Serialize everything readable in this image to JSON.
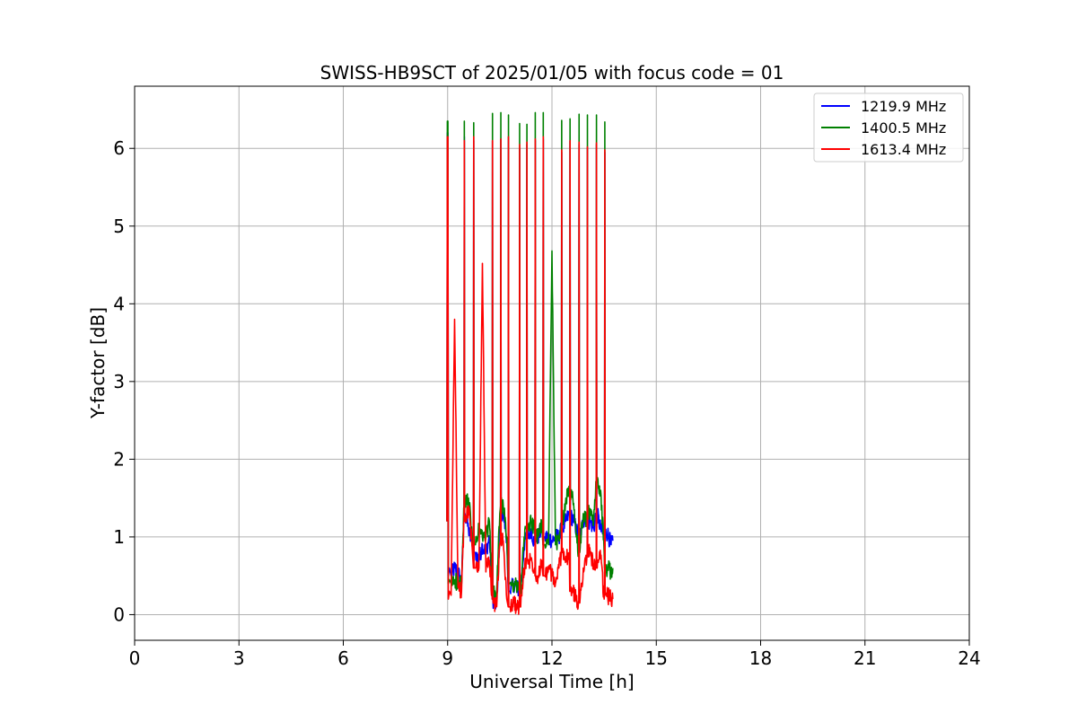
{
  "chart_data": {
    "type": "line",
    "title": "SWISS-HB9SCT of 2025/01/05 with focus code = 01",
    "xlabel": "Universal Time [h]",
    "ylabel": "Y-factor [dB]",
    "xlim": [
      0,
      24
    ],
    "ylim": [
      -0.33,
      6.8
    ],
    "xticks": [
      0,
      3,
      6,
      9,
      12,
      15,
      18,
      21,
      24
    ],
    "xtick_labels": [
      "0",
      "3",
      "6",
      "9",
      "12",
      "15",
      "18",
      "21",
      "24"
    ],
    "yticks": [
      0,
      1,
      2,
      3,
      4,
      5,
      6
    ],
    "ytick_labels": [
      "0",
      "1",
      "2",
      "3",
      "4",
      "5",
      "6"
    ],
    "grid": true,
    "legend_position": "top-right",
    "series": [
      {
        "name": "1219.9 MHz",
        "color": "#0000ff",
        "x": [
          8.98,
          9.0,
          9.02,
          9.05,
          9.1,
          9.2,
          9.3,
          9.4,
          9.5,
          9.6,
          9.7,
          9.8,
          9.9,
          10.0,
          10.1,
          10.2,
          10.3,
          10.4,
          10.5,
          10.6,
          10.7,
          10.8,
          10.9,
          11.0,
          11.1,
          11.2,
          11.3,
          11.4,
          11.5,
          11.6,
          11.7,
          11.8,
          11.9,
          12.0,
          12.1,
          12.2,
          12.3,
          12.4,
          12.5,
          12.6,
          12.7,
          12.8,
          12.9,
          13.0,
          13.1,
          13.2,
          13.3,
          13.4,
          13.5,
          13.6,
          13.7,
          13.75
        ],
        "y": [
          1.2,
          6.2,
          0.5,
          0.6,
          0.5,
          0.6,
          0.55,
          0.4,
          1.3,
          1.1,
          0.9,
          0.8,
          0.7,
          0.9,
          0.8,
          1.0,
          0.2,
          0.1,
          0.9,
          1.3,
          1.0,
          0.3,
          0.4,
          0.35,
          0.3,
          0.9,
          1.0,
          1.1,
          0.9,
          1.0,
          1.1,
          1.0,
          1.0,
          0.95,
          1.0,
          1.0,
          1.1,
          1.2,
          1.3,
          1.25,
          1.1,
          1.0,
          1.2,
          1.3,
          1.2,
          1.1,
          1.3,
          1.1,
          1.0,
          1.05,
          0.9,
          0.95
        ]
      },
      {
        "name": "1400.5 MHz",
        "color": "#008000",
        "x": [
          8.98,
          9.0,
          9.02,
          9.05,
          9.1,
          9.2,
          9.3,
          9.4,
          9.5,
          9.6,
          9.7,
          9.8,
          9.9,
          10.0,
          10.1,
          10.2,
          10.3,
          10.4,
          10.5,
          10.6,
          10.7,
          10.8,
          10.9,
          11.0,
          11.1,
          11.2,
          11.3,
          11.4,
          11.5,
          11.6,
          11.7,
          11.8,
          11.9,
          12.0,
          12.1,
          12.2,
          12.3,
          12.4,
          12.5,
          12.6,
          12.7,
          12.8,
          12.9,
          13.0,
          13.1,
          13.2,
          13.3,
          13.4,
          13.5,
          13.6,
          13.7,
          13.75
        ],
        "y": [
          1.2,
          6.35,
          0.4,
          0.45,
          0.4,
          0.45,
          0.4,
          0.4,
          1.4,
          1.5,
          1.0,
          0.9,
          1.1,
          1.0,
          1.0,
          1.2,
          0.3,
          0.2,
          1.3,
          1.4,
          1.0,
          0.4,
          0.4,
          0.35,
          0.3,
          1.0,
          1.1,
          1.2,
          1.1,
          1.0,
          1.2,
          0.9,
          0.9,
          4.68,
          0.9,
          1.0,
          1.2,
          1.5,
          1.6,
          1.5,
          1.0,
          0.8,
          1.3,
          1.2,
          1.3,
          1.2,
          1.7,
          1.6,
          0.8,
          0.6,
          0.55,
          0.6
        ]
      },
      {
        "name": "1613.4 MHz",
        "color": "#ff0000",
        "x": [
          8.98,
          9.0,
          9.02,
          9.05,
          9.1,
          9.2,
          9.3,
          9.4,
          9.5,
          9.6,
          9.7,
          9.8,
          9.9,
          10.0,
          10.1,
          10.2,
          10.3,
          10.4,
          10.5,
          10.6,
          10.7,
          10.8,
          10.9,
          11.0,
          11.1,
          11.2,
          11.3,
          11.4,
          11.5,
          11.6,
          11.7,
          11.8,
          11.9,
          12.0,
          12.1,
          12.2,
          12.3,
          12.4,
          12.5,
          12.6,
          12.7,
          12.8,
          12.9,
          13.0,
          13.1,
          13.2,
          13.3,
          13.4,
          13.5,
          13.6,
          13.7,
          13.75
        ],
        "y": [
          1.2,
          6.15,
          0.2,
          0.3,
          0.25,
          3.8,
          0.35,
          0.3,
          1.2,
          1.4,
          0.9,
          0.6,
          0.6,
          4.52,
          0.55,
          0.7,
          0.2,
          0.1,
          0.9,
          0.95,
          0.2,
          0.1,
          0.15,
          0.1,
          0.1,
          0.6,
          0.7,
          0.7,
          0.6,
          0.5,
          0.7,
          0.5,
          0.6,
          0.5,
          0.4,
          0.6,
          0.8,
          0.75,
          0.7,
          0.3,
          0.2,
          0.15,
          0.6,
          0.7,
          0.8,
          0.65,
          0.6,
          0.75,
          0.2,
          0.25,
          0.2,
          0.2
        ]
      }
    ],
    "spikes": {
      "x": [
        9.0,
        9.48,
        9.75,
        10.29,
        10.53,
        10.75,
        11.07,
        11.28,
        11.52,
        11.75,
        12.28,
        12.52,
        12.78,
        13.02,
        13.28,
        13.52
      ],
      "y": {
        "1219.9 MHz": [
          6.2,
          6.15,
          6.1,
          6.1,
          6.12,
          6.15,
          6.0,
          6.05,
          6.1,
          6.12,
          5.95,
          6.1,
          6.05,
          6.0,
          6.05,
          5.95
        ],
        "1400.5 MHz": [
          6.35,
          6.35,
          6.33,
          6.45,
          6.46,
          6.43,
          6.32,
          6.31,
          6.46,
          6.46,
          6.36,
          6.38,
          6.44,
          6.43,
          6.43,
          6.34
        ],
        "1613.4 MHz": [
          6.15,
          6.1,
          6.15,
          6.1,
          6.12,
          6.15,
          6.05,
          6.08,
          6.12,
          6.15,
          5.98,
          6.1,
          6.08,
          6.02,
          6.07,
          5.98
        ]
      }
    }
  }
}
